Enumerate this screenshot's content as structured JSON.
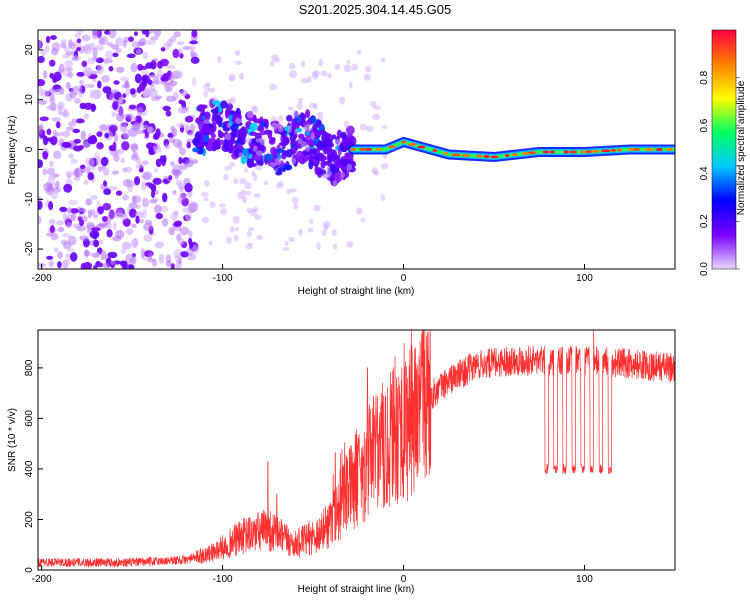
{
  "figure": {
    "title": "S201.2025.304.14.45.G05"
  },
  "chart_data": [
    {
      "type": "heatmap",
      "xlabel": "Height of straight line (km)",
      "ylabel": "Frequency (Hz)",
      "xlim": [
        -202,
        150
      ],
      "ylim": [
        -24,
        24
      ],
      "xticks": [
        -200,
        -100,
        0,
        100
      ],
      "yticks": [
        -20,
        -10,
        0,
        10,
        20
      ],
      "colorbar": {
        "label": "Normalized spectral amplitude",
        "range": [
          0,
          1
        ],
        "ticks": [
          "0.0",
          "0.2",
          "0.4",
          "0.6",
          "0.8"
        ],
        "colormap": [
          "#e8d8ff",
          "#7a00ff",
          "#0000ff",
          "#00c8ff",
          "#00ff60",
          "#ffff00",
          "#ff8000",
          "#ff0040"
        ]
      },
      "regions": [
        {
          "name": "noise",
          "x_range": [
            -202,
            -115
          ],
          "freq_range": [
            -24,
            24
          ],
          "amplitude": 0.05
        },
        {
          "name": "transition",
          "x_range": [
            -115,
            -28
          ],
          "freq_center_points": [
            [
              -115,
              4
            ],
            [
              -100,
              5
            ],
            [
              -85,
              2
            ],
            [
              -70,
              0
            ],
            [
              -55,
              3
            ],
            [
              -40,
              -2
            ],
            [
              -30,
              0
            ]
          ],
          "amplitude": 0.3
        },
        {
          "name": "signal",
          "x_range": [
            -28,
            150
          ],
          "freq_center_points": [
            [
              -28,
              0
            ],
            [
              -10,
              0
            ],
            [
              0,
              1.5
            ],
            [
              10,
              0.5
            ],
            [
              25,
              -1
            ],
            [
              50,
              -1.5
            ],
            [
              75,
              -0.5
            ],
            [
              100,
              -0.5
            ],
            [
              125,
              0
            ],
            [
              150,
              0
            ]
          ],
          "amplitude": 0.9
        }
      ]
    },
    {
      "type": "line",
      "xlabel": "Height of straight line (km)",
      "ylabel": "SNR (10 * v/v)",
      "xlim": [
        -202,
        150
      ],
      "ylim": [
        0,
        950
      ],
      "xticks": [
        -200,
        -100,
        0,
        100
      ],
      "yticks": [
        0,
        200,
        400,
        600,
        800
      ],
      "color": "#ff3030",
      "series": [
        {
          "name": "SNR",
          "envelope": [
            [
              -202,
              30
            ],
            [
              -150,
              30
            ],
            [
              -120,
              40
            ],
            [
              -105,
              70
            ],
            [
              -90,
              130
            ],
            [
              -75,
              160
            ],
            [
              -60,
              100
            ],
            [
              -45,
              150
            ],
            [
              -35,
              250
            ],
            [
              -25,
              380
            ],
            [
              -15,
              450
            ],
            [
              -5,
              550
            ],
            [
              5,
              620
            ],
            [
              15,
              690
            ],
            [
              25,
              750
            ],
            [
              40,
              810
            ],
            [
              60,
              830
            ],
            [
              80,
              830
            ],
            [
              100,
              830
            ],
            [
              120,
              820
            ],
            [
              150,
              800
            ]
          ],
          "spikes": [
            [
              -75,
              430
            ],
            [
              -70,
              300
            ],
            [
              -20,
              800
            ],
            [
              -10,
              690
            ],
            [
              105,
              950
            ]
          ],
          "dips": [
            {
              "x_range": [
                78,
                115
              ],
              "value": 400
            }
          ]
        }
      ]
    }
  ]
}
